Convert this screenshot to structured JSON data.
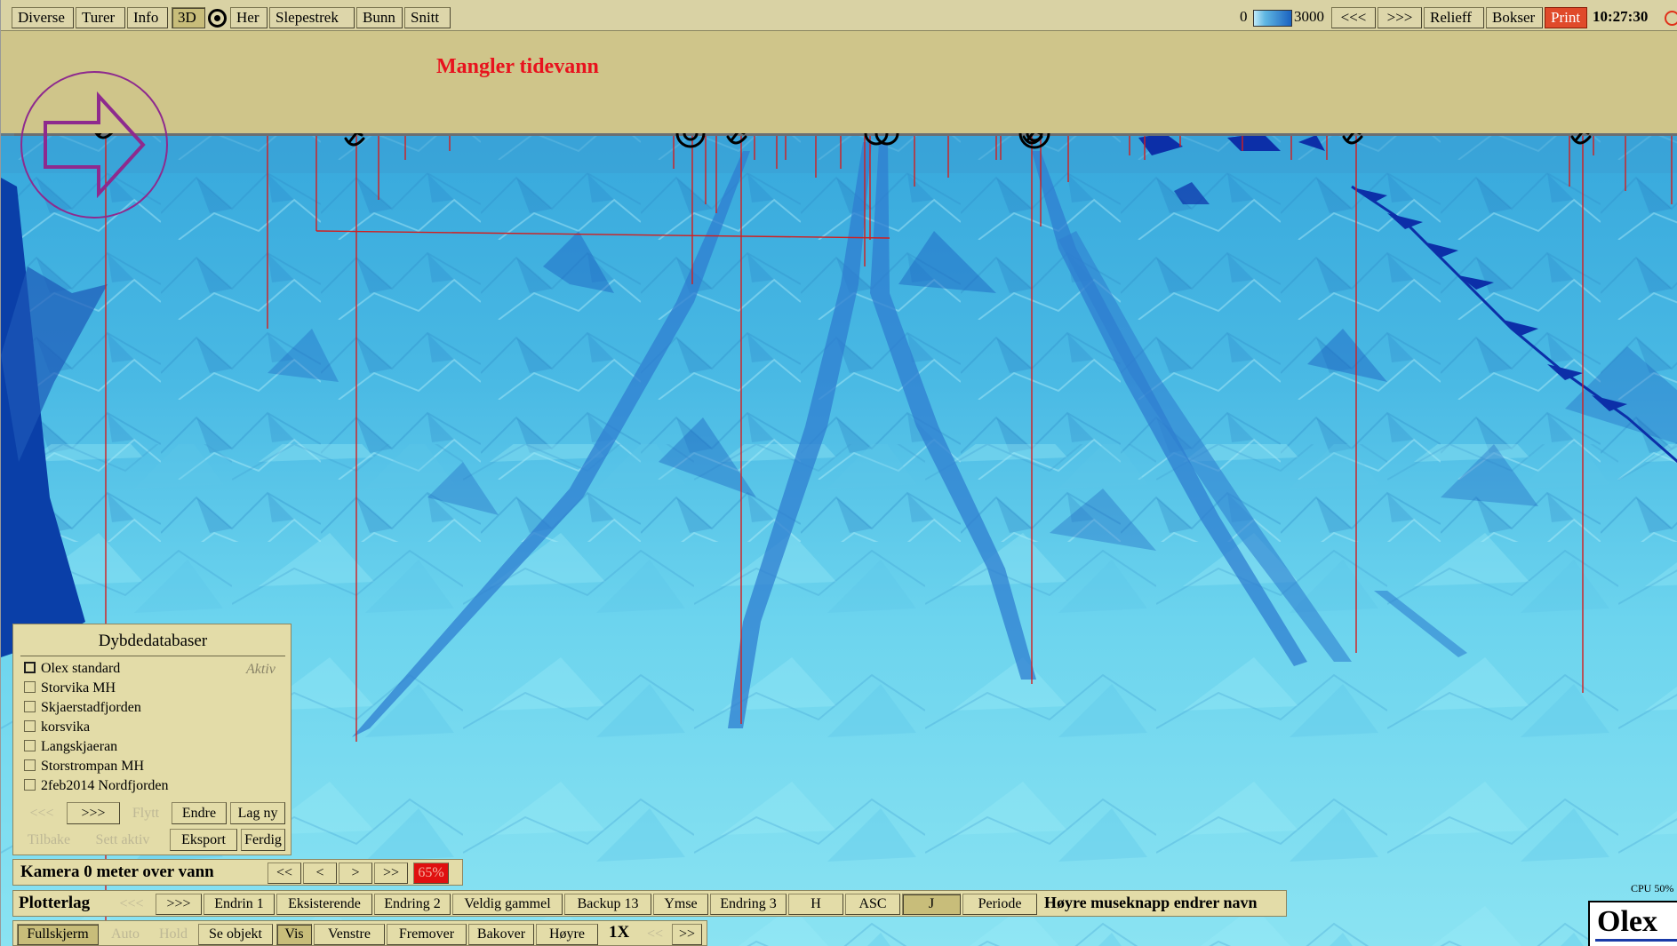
{
  "topbar": {
    "items": [
      "Diverse",
      "Turer",
      "Info",
      "3D",
      "Her",
      "Slepestrek",
      "Bunn",
      "Snitt"
    ],
    "scale_min": "0",
    "scale_max": "3000",
    "prev": "<<<",
    "next": ">>>",
    "relief": "Relieff",
    "bokser": "Bokser",
    "print": "Print",
    "clock": "10:27:30"
  },
  "warning": "Mangler tidevann",
  "depth_db": {
    "title": "Dybdedatabaser",
    "active_label": "Aktiv",
    "items": [
      {
        "name": "Olex standard",
        "checked": true
      },
      {
        "name": "Storvika MH",
        "checked": false
      },
      {
        "name": "Skjaerstadfjorden",
        "checked": false
      },
      {
        "name": "korsvika",
        "checked": false
      },
      {
        "name": "Langskjaeran",
        "checked": false
      },
      {
        "name": "Storstrompan MH",
        "checked": false
      },
      {
        "name": "2feb2014 Nordfjorden",
        "checked": false
      }
    ],
    "row1": [
      "<<<",
      ">>>",
      "Flytt",
      "Endre",
      "Lag ny"
    ],
    "row2": [
      "Tilbake",
      "Sett aktiv",
      "Eksport",
      "Ferdig"
    ]
  },
  "camera": {
    "label": "Kamera 0 meter over vann",
    "buttons": [
      "<<",
      "<",
      ">",
      ">>"
    ],
    "percent": "65%"
  },
  "plotterlag": {
    "label": "Plotterlag",
    "buttons": [
      "<<<",
      ">>>",
      "Endrin 1",
      "Eksisterende",
      "Endring 2",
      "Veldig gammel",
      "Backup 13",
      "Ymse",
      "Endring 3",
      "H",
      "ASC",
      "J",
      "Periode"
    ],
    "hint": "Høyre museknapp endrer navn"
  },
  "bottom": {
    "buttons": [
      "Fullskjerm",
      "Auto",
      "Hold",
      "Se objekt",
      "Vis",
      "Venstre",
      "Fremover",
      "Bakover",
      "Høyre"
    ],
    "zoom": "1X",
    "zoom_prev": "<<",
    "zoom_next": ">>"
  },
  "cpu": "CPU 50%",
  "logo": "Olex"
}
